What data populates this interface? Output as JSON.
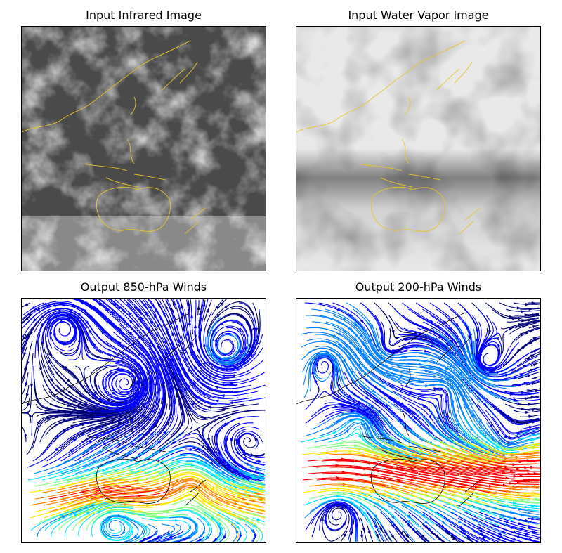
{
  "figure": {
    "panels": [
      {
        "id": "ir",
        "title": "Input Infrared Image",
        "kind": "infrared-satellite-image",
        "coastline_color": "#e8c52a"
      },
      {
        "id": "wv",
        "title": "Input Water Vapor Image",
        "kind": "water-vapor-satellite-image",
        "coastline_color": "#e8c52a"
      },
      {
        "id": "w850",
        "title": "Output 850-hPa Winds",
        "kind": "wind-streamline-map",
        "coastline_color": "#000000"
      },
      {
        "id": "w200",
        "title": "Output 200-hPa Winds",
        "kind": "wind-streamline-map",
        "coastline_color": "#000000"
      }
    ],
    "colormap": [
      "#00007f",
      "#0000ff",
      "#007fff",
      "#00e5ff",
      "#7fff7f",
      "#ffe500",
      "#ff7f00",
      "#ff0000"
    ]
  }
}
